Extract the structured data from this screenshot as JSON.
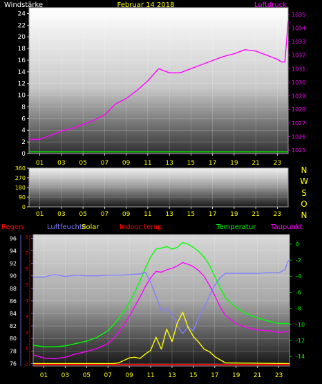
{
  "header": {
    "left_label": "Windstärke",
    "date": "Februar 14 2018",
    "right_label": "Luftdruck"
  },
  "colors": {
    "background": "#000000",
    "axis_text": "#ffffff",
    "hour_text": "#ffff00",
    "header_date": "#ffff00",
    "pressure": "#ff00ff",
    "wind": "#00ff00",
    "regen": "#ff0000",
    "luftfeuchte": "#8080ff",
    "solar": "#ffff00",
    "indoor": "#ff0000",
    "temperatur": "#00ff00",
    "taupunkt": "#ff00ff"
  },
  "chart_data": [
    {
      "id": "wind-pressure",
      "type": "line",
      "x_tick_labels": [
        "01",
        "03",
        "05",
        "07",
        "09",
        "11",
        "13",
        "15",
        "17",
        "19",
        "21",
        "23"
      ],
      "left_axis": {
        "label": "Windstärke",
        "ticks": [
          0,
          2,
          4,
          6,
          8,
          10,
          12,
          14,
          16,
          18,
          20,
          22,
          24
        ],
        "range": [
          0,
          25
        ]
      },
      "right_axis": {
        "label": "Luftdruck",
        "ticks": [
          1025,
          1026,
          1027,
          1028,
          1029,
          1030,
          1031,
          1032,
          1033,
          1034,
          1035
        ],
        "range": [
          1024.75,
          1035.5
        ]
      },
      "series": [
        {
          "name": "Luftdruck",
          "axis": "right",
          "x": [
            0,
            1,
            2,
            3,
            4,
            5,
            6,
            7,
            8,
            9,
            10,
            11,
            12,
            13,
            14,
            15,
            16,
            17,
            18,
            19,
            20,
            21,
            22,
            23,
            23.4,
            23.7,
            24
          ],
          "values": [
            1025.8,
            1025.8,
            1026.1,
            1026.4,
            1026.6,
            1026.9,
            1027.2,
            1027.6,
            1028.4,
            1028.8,
            1029.4,
            1030.1,
            1031.0,
            1030.7,
            1030.7,
            1031.0,
            1031.3,
            1031.6,
            1031.9,
            1032.1,
            1032.4,
            1032.3,
            1032.0,
            1031.7,
            1031.5,
            1031.5,
            1034.5
          ]
        },
        {
          "name": "Windstärke",
          "axis": "left",
          "x": [
            0,
            24
          ],
          "values": [
            0.3,
            0.3
          ]
        }
      ]
    },
    {
      "id": "wind-direction",
      "type": "scatter",
      "x_tick_labels": [
        "01",
        "03",
        "05",
        "07",
        "09",
        "11",
        "13",
        "15",
        "17",
        "19",
        "21",
        "23"
      ],
      "left_axis": {
        "ticks": [
          0,
          90,
          180,
          270,
          360
        ],
        "range": [
          0,
          360
        ]
      },
      "direction_labels": [
        "N",
        "W",
        "S",
        "O",
        "N"
      ],
      "series": []
    },
    {
      "id": "climate",
      "type": "line",
      "x_tick_labels": [
        "01",
        "03",
        "05",
        "07",
        "09",
        "11",
        "13",
        "15",
        "17",
        "19",
        "21",
        "23"
      ],
      "legend": [
        "Regen",
        "Luftfeuchte",
        "Solar",
        "Indoor temp",
        "Temperatur",
        "Taupunkt"
      ],
      "left_axis": {
        "label": "Luftfeuchte",
        "ticks": [
          76,
          78,
          80,
          82,
          84,
          86,
          88,
          90,
          92,
          94,
          96
        ],
        "range": [
          75.6,
          96.6
        ]
      },
      "regen_axis": {
        "ticks": [
          0,
          1,
          2,
          3,
          4,
          5,
          6,
          7,
          8
        ]
      },
      "right_axis": {
        "label": "Temperatur",
        "ticks": [
          0,
          -2,
          -4,
          -6,
          -8,
          -10,
          -12,
          -14
        ],
        "range": [
          -15.2,
          1.2
        ]
      },
      "series": [
        {
          "name": "Temperatur",
          "axis": "right",
          "x": [
            0,
            1,
            2,
            3,
            4,
            5,
            6,
            7,
            7.5,
            8,
            8.5,
            9,
            9.5,
            10,
            10.5,
            11,
            11.5,
            12,
            12.5,
            13,
            13.5,
            14,
            14.5,
            15,
            15.5,
            16,
            16.5,
            17,
            17.5,
            18,
            19,
            20,
            21,
            22,
            23,
            24
          ],
          "values": [
            -12.6,
            -12.8,
            -12.8,
            -12.7,
            -12.4,
            -12.1,
            -11.6,
            -10.8,
            -10.1,
            -9.3,
            -8.4,
            -7.3,
            -6.0,
            -4.6,
            -3.0,
            -1.6,
            -0.6,
            -0.5,
            -0.3,
            -0.6,
            -0.4,
            0.2,
            0.0,
            -0.4,
            -0.9,
            -1.6,
            -2.6,
            -4.0,
            -5.4,
            -6.7,
            -7.9,
            -8.7,
            -9.2,
            -9.6,
            -9.9,
            -9.9
          ]
        },
        {
          "name": "Taupunkt",
          "axis": "right",
          "x": [
            0,
            1,
            2,
            3,
            4,
            5,
            6,
            7,
            7.5,
            8,
            8.5,
            9,
            9.5,
            10,
            10.5,
            11,
            11.5,
            12,
            12.5,
            13,
            13.5,
            14,
            14.5,
            15,
            15.5,
            16,
            16.5,
            17,
            17.5,
            18,
            19,
            20,
            21,
            22,
            23,
            24
          ],
          "values": [
            -13.8,
            -14.2,
            -14.3,
            -14.1,
            -13.7,
            -13.4,
            -13.0,
            -12.4,
            -11.8,
            -11.0,
            -10.1,
            -9.0,
            -7.8,
            -6.6,
            -5.3,
            -4.2,
            -3.4,
            -3.5,
            -3.2,
            -3.0,
            -2.7,
            -2.3,
            -2.5,
            -2.8,
            -3.3,
            -4.0,
            -5.1,
            -6.4,
            -7.8,
            -8.9,
            -9.9,
            -10.4,
            -10.7,
            -10.8,
            -11.0,
            -10.9
          ]
        },
        {
          "name": "Luftfeuchte",
          "axis": "left",
          "x": [
            0,
            1,
            2,
            3,
            4,
            5,
            6,
            7,
            8,
            9,
            10,
            10.5,
            11,
            11.5,
            12,
            12.5,
            13,
            13.5,
            14,
            14.5,
            15,
            15.5,
            16,
            16.5,
            17,
            17.5,
            18,
            19,
            20,
            21,
            22,
            23,
            23.6,
            23.8,
            24
          ],
          "values": [
            89.8,
            89.8,
            90.2,
            89.9,
            90.1,
            90.0,
            90.0,
            90.1,
            90.1,
            90.2,
            90.3,
            90.6,
            89.0,
            86.7,
            84.4,
            84.8,
            83.9,
            82.0,
            80.8,
            81.9,
            81.2,
            83.4,
            84.9,
            86.8,
            88.5,
            89.7,
            90.4,
            90.4,
            90.4,
            90.4,
            90.5,
            90.5,
            91.0,
            92.2,
            92.5
          ]
        },
        {
          "name": "Solar",
          "axis": "left",
          "x": [
            0,
            7.5,
            8,
            8.5,
            9,
            9.5,
            10,
            10.5,
            11,
            11.5,
            12,
            12.5,
            13,
            13.5,
            14,
            14.5,
            15,
            15.5,
            16,
            16.5,
            17,
            17.5,
            18,
            24
          ],
          "values": [
            76.0,
            76.0,
            76.1,
            76.5,
            76.9,
            77.0,
            76.8,
            77.5,
            78.1,
            80.2,
            78.3,
            81.5,
            79.5,
            82.5,
            84.2,
            81.8,
            80.3,
            79.4,
            78.3,
            77.9,
            77.1,
            76.6,
            76.1,
            76.0
          ]
        },
        {
          "name": "Indoor temp",
          "axis": "right",
          "x": [
            0,
            24
          ],
          "values": [
            -15.0,
            -15.0
          ]
        },
        {
          "name": "Regen",
          "axis": "left",
          "x": [
            0,
            24
          ],
          "values": [
            75.8,
            75.8
          ]
        }
      ]
    }
  ]
}
